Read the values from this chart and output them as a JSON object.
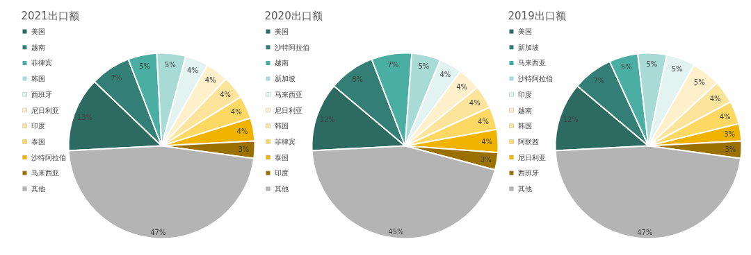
{
  "chart_data": [
    {
      "type": "pie",
      "title": "2021出口额",
      "categories": [
        "美国",
        "越南",
        "菲律宾",
        "韩国",
        "西班牙",
        "尼日利亚",
        "印度",
        "泰国",
        "沙特阿拉伯",
        "马来西亚",
        "其他"
      ],
      "values": [
        13,
        7,
        5,
        5,
        4,
        4,
        4,
        4,
        4,
        3,
        47
      ],
      "value_labels": [
        "13%",
        "7%",
        "5%",
        "5%",
        "4%",
        "4%",
        "4%",
        "4%",
        "4%",
        "3%",
        "47%"
      ],
      "colors": [
        "#2c6a62",
        "#347f75",
        "#4aaea3",
        "#a8dad6",
        "#e2f3f1",
        "#fdf0cb",
        "#fde49b",
        "#fdd964",
        "#f0b400",
        "#9a7100",
        "#b4b4b4"
      ],
      "legend": "left"
    },
    {
      "type": "pie",
      "title": "2020出口额",
      "categories": [
        "美国",
        "沙特阿拉伯",
        "越南",
        "新加坡",
        "马来西亚",
        "尼日利亚",
        "韩国",
        "菲律宾",
        "泰国",
        "印度",
        "其他"
      ],
      "values": [
        12,
        8,
        7,
        5,
        4,
        4,
        4,
        4,
        4,
        3,
        45
      ],
      "value_labels": [
        "12%",
        "8%",
        "7%",
        "5%",
        "4%",
        "4%",
        "4%",
        "4%",
        "4%",
        "3%",
        "45%"
      ],
      "colors": [
        "#2c6a62",
        "#347f75",
        "#4aaea3",
        "#a8dad6",
        "#e2f3f1",
        "#fdf0cb",
        "#fde49b",
        "#fdd964",
        "#f0b400",
        "#9a7100",
        "#b4b4b4"
      ],
      "legend": "left"
    },
    {
      "type": "pie",
      "title": "2019出口额",
      "categories": [
        "美国",
        "新加坡",
        "马来西亚",
        "沙特阿拉伯",
        "印度",
        "越南",
        "韩国",
        "阿联酋",
        "尼日利亚",
        "西班牙",
        "其他"
      ],
      "values": [
        12,
        7,
        5,
        5,
        5,
        5,
        4,
        4,
        3,
        3,
        47
      ],
      "value_labels": [
        "12%",
        "7%",
        "5%",
        "5%",
        "5%",
        "5%",
        "4%",
        "4%",
        "3%",
        "3%",
        "47%"
      ],
      "colors": [
        "#2c6a62",
        "#347f75",
        "#4aaea3",
        "#a8dad6",
        "#e2f3f1",
        "#fdf0cb",
        "#fde49b",
        "#fdd964",
        "#f0b400",
        "#9a7100",
        "#b4b4b4"
      ],
      "legend": "left"
    }
  ]
}
